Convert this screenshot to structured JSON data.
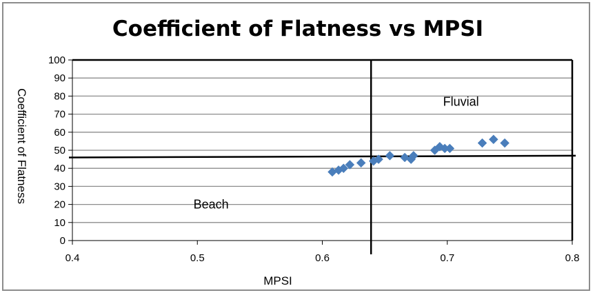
{
  "chart_data": {
    "type": "scatter",
    "title": "Coefficient of Flatness vs MPSI",
    "xlabel": "MPSI",
    "ylabel": "Coefficient of Flatness",
    "xlim": [
      0.4,
      0.8
    ],
    "ylim": [
      0,
      100
    ],
    "x_ticks": [
      "0.4",
      "0.5",
      "0.6",
      "0.7",
      "0.8"
    ],
    "y_ticks": [
      "0",
      "10",
      "20",
      "30",
      "40",
      "50",
      "60",
      "70",
      "80",
      "90",
      "100"
    ],
    "grid": "horizontal",
    "marker": "diamond",
    "marker_color": "#4a7ebb",
    "points": [
      {
        "x": 0.608,
        "y": 38
      },
      {
        "x": 0.613,
        "y": 39
      },
      {
        "x": 0.617,
        "y": 40
      },
      {
        "x": 0.622,
        "y": 42
      },
      {
        "x": 0.631,
        "y": 43
      },
      {
        "x": 0.641,
        "y": 44
      },
      {
        "x": 0.645,
        "y": 45
      },
      {
        "x": 0.654,
        "y": 47
      },
      {
        "x": 0.666,
        "y": 46
      },
      {
        "x": 0.671,
        "y": 45
      },
      {
        "x": 0.673,
        "y": 47
      },
      {
        "x": 0.69,
        "y": 50
      },
      {
        "x": 0.694,
        "y": 52
      },
      {
        "x": 0.698,
        "y": 51
      },
      {
        "x": 0.702,
        "y": 51
      },
      {
        "x": 0.728,
        "y": 54
      },
      {
        "x": 0.737,
        "y": 56
      },
      {
        "x": 0.746,
        "y": 54
      }
    ],
    "divider_vertical_x": 0.639,
    "divider_line": {
      "x_start": 0.4,
      "y_start": 46,
      "x_end": 0.8,
      "y_end": 47
    },
    "annotations": [
      {
        "text": "Fluvial",
        "x": 0.711,
        "y": 77
      },
      {
        "text": "Beach",
        "x": 0.511,
        "y": 20
      }
    ]
  }
}
